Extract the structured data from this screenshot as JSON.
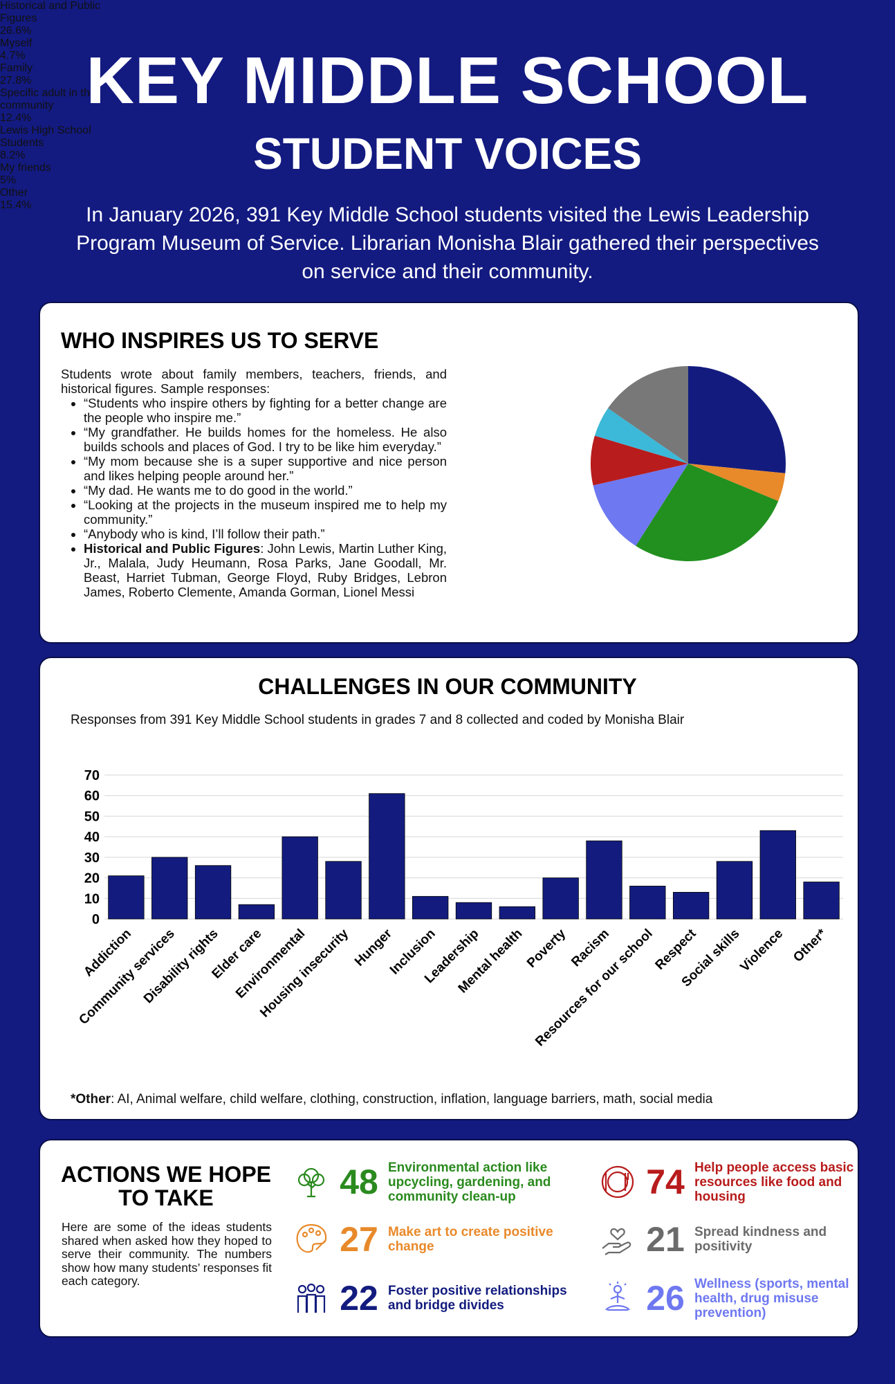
{
  "header": {
    "title": "KEY MIDDLE SCHOOL",
    "subtitle": "STUDENT VOICES",
    "intro": "In January 2026, 391 Key Middle School students visited the Lewis Leadership Program Museum of Service. Librarian Monisha Blair gathered their perspectives on service and their community."
  },
  "inspire": {
    "title": "WHO INSPIRES US TO SERVE",
    "intro": "Students wrote about family members, teachers, friends, and historical figures. Sample responses:",
    "quotes": [
      "“Students who inspire others by fighting for a better change are the people who inspire me.”",
      "“My grandfather. He builds homes for the homeless. He also builds schools and places of God. I try to be like him everyday.”",
      "“My mom because she is a super supportive and nice person and likes helping people around her.”",
      "“My dad. He wants me to do good in the world.”",
      "“Looking at the projects in the museum inspired me to help my community.”",
      "“Anybody who is kind, I’ll follow their path.”"
    ],
    "figures_label": "Historical and Public Figures",
    "figures_text": ": John Lewis, Martin Luther King, Jr., Malala, Judy Heumann, Rosa Parks, Jane Goodall, Mr. Beast, Harriet Tubman, George Floyd, Ruby Bridges, Lebron James, Roberto Clemente, Amanda Gorman, Lionel Messi"
  },
  "chart_data": [
    {
      "type": "pie",
      "categories": [
        "Historical and Public Figures",
        "Myself",
        "Family",
        "Specific adult in the community",
        "Lewis High School Students",
        "My friends",
        "Other"
      ],
      "values": [
        26.6,
        4.7,
        27.8,
        12.4,
        8.2,
        5,
        15.4
      ],
      "value_labels": [
        "26.6%",
        "4.7%",
        "27.8%",
        "12.4%",
        "8.2%",
        "5%",
        "15.4%"
      ],
      "colors": [
        "#131c7e",
        "#e8892a",
        "#21901f",
        "#6e78f0",
        "#b81c1c",
        "#3cb8d8",
        "#787878"
      ]
    },
    {
      "type": "bar",
      "title": "CHALLENGES IN OUR COMMUNITY",
      "subtitle": "Responses from 391 Key Middle School students in grades 7 and 8 collected and coded by Monisha Blair",
      "categories": [
        "Addiction",
        "Community services",
        "Disability rights",
        "Elder care",
        "Environmental",
        "Housing insecurity",
        "Hunger",
        "Inclusion",
        "Leadership",
        "Mental health",
        "Poverty",
        "Racism",
        "Resources for our school",
        "Respect",
        "Social skills",
        "Violence",
        "Other*"
      ],
      "values": [
        21,
        30,
        26,
        7,
        40,
        28,
        61,
        11,
        8,
        6,
        20,
        38,
        16,
        13,
        28,
        43,
        18
      ],
      "color": "#131c7e",
      "ylim": [
        0,
        70
      ],
      "yticks": [
        0,
        10,
        20,
        30,
        40,
        50,
        60,
        70
      ],
      "grid": true,
      "footnote_label": "*Other",
      "footnote_text": ": AI, Animal welfare, child welfare, clothing, construction, inflation, language barriers, math, social media"
    }
  ],
  "actions": {
    "title": "ACTIONS WE HOPE TO TAKE",
    "text": "Here are some of the ideas students shared when asked how they hoped to serve their community. The numbers show how many students’ responses fit each category.",
    "items": [
      {
        "count": 48,
        "label": "Environmental action like upcycling, gardening, and community clean-up",
        "color": "#2a8a1e"
      },
      {
        "count": 27,
        "label": "Make art to create positive change",
        "color": "#e8892a"
      },
      {
        "count": 22,
        "label": "Foster positive relationships and bridge divides",
        "color": "#131c7e"
      },
      {
        "count": 74,
        "label": "Help people access basic resources like food and housing",
        "color": "#b81c1c"
      },
      {
        "count": 21,
        "label": "Spread kindness and positivity",
        "color": "#6b6b6b"
      },
      {
        "count": 26,
        "label": "Wellness (sports, mental health, drug misuse prevention)",
        "color": "#6e78f0"
      }
    ]
  }
}
